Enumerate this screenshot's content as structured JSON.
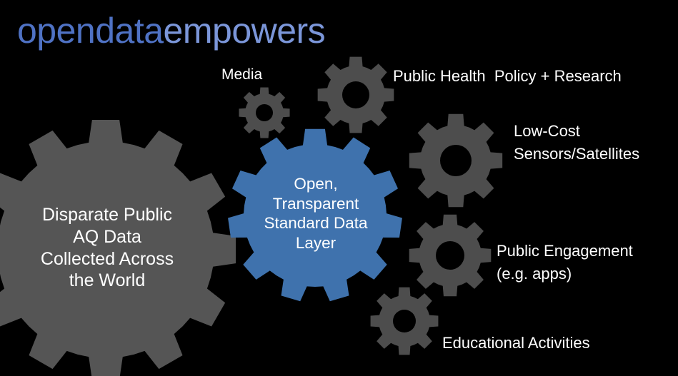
{
  "title": {
    "part1": "opendata",
    "part2": "empowers"
  },
  "colors": {
    "background": "#000000",
    "gear_gray": "#555555",
    "gear_small_gray": "#4d4d4d",
    "gear_blue": "#3f72ad",
    "title_part1": "#4f72c4",
    "title_part2": "#7b96d9"
  },
  "source_gear": {
    "lines": [
      "Disparate Public",
      "AQ Data",
      "Collected Across",
      "the World"
    ]
  },
  "center_gear": {
    "lines": [
      "Open,",
      "Transparent",
      "Standard Data",
      "Layer"
    ]
  },
  "outputs": {
    "media": "Media",
    "public_health": "Public Health  Policy + Research",
    "low_cost": [
      "Low-Cost",
      "Sensors/Satellites"
    ],
    "engagement": [
      "Public Engagement",
      "(e.g. apps)"
    ],
    "educational": "Educational Activities"
  }
}
